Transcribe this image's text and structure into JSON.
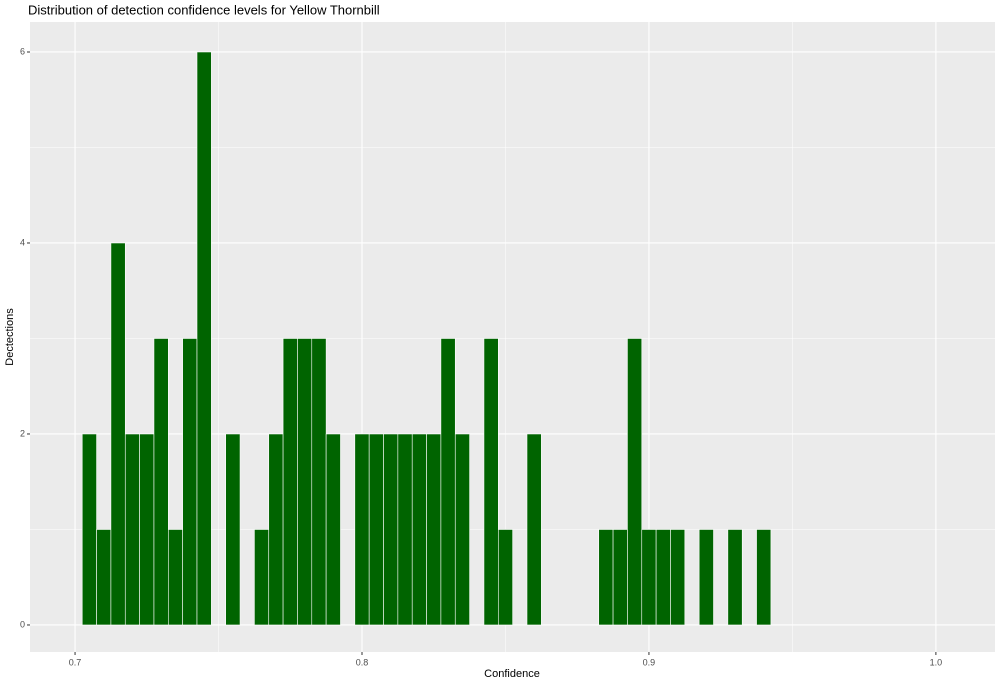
{
  "chart_data": {
    "type": "histogram",
    "title": "Distribution of detection confidence levels for Yellow Thornbill",
    "x_label": "Confidence",
    "y_label": "Dectections",
    "bins": [
      0.7025,
      0.7075,
      0.7125,
      0.7175,
      0.7225,
      0.7275,
      0.7325,
      0.7375,
      0.7425,
      0.7475,
      0.7525,
      0.7575,
      0.7625,
      0.7675,
      0.7725,
      0.7775,
      0.7825,
      0.7875,
      0.7925,
      0.7975,
      0.8025,
      0.8075,
      0.8125,
      0.8175,
      0.8225,
      0.8275,
      0.8325,
      0.8375,
      0.8425,
      0.8475,
      0.8525,
      0.8575,
      0.8625,
      0.8675,
      0.8725,
      0.8775,
      0.8825,
      0.8875,
      0.8925,
      0.8975,
      0.9025,
      0.9075,
      0.9125,
      0.9175,
      0.9225,
      0.9275,
      0.9325,
      0.9375,
      0.9425
    ],
    "values": [
      2,
      1,
      4,
      2,
      2,
      3,
      1,
      3,
      6,
      0,
      2,
      0,
      1,
      2,
      3,
      3,
      3,
      2,
      0,
      2,
      2,
      2,
      2,
      2,
      2,
      3,
      2,
      0,
      3,
      1,
      0,
      2,
      0,
      0,
      0,
      0,
      1,
      1,
      3,
      1,
      1,
      1,
      0,
      1,
      0,
      1,
      0,
      1
    ],
    "color": "#006400",
    "xlim": [
      0.6843,
      1.0206
    ],
    "ylim": [
      -0.283,
      6.314
    ],
    "xticks": [
      0.7,
      0.8,
      0.9,
      {
        "value": 1,
        "label": "1.0"
      }
    ],
    "yticks": [
      0,
      2,
      4,
      6
    ],
    "grid": true
  }
}
